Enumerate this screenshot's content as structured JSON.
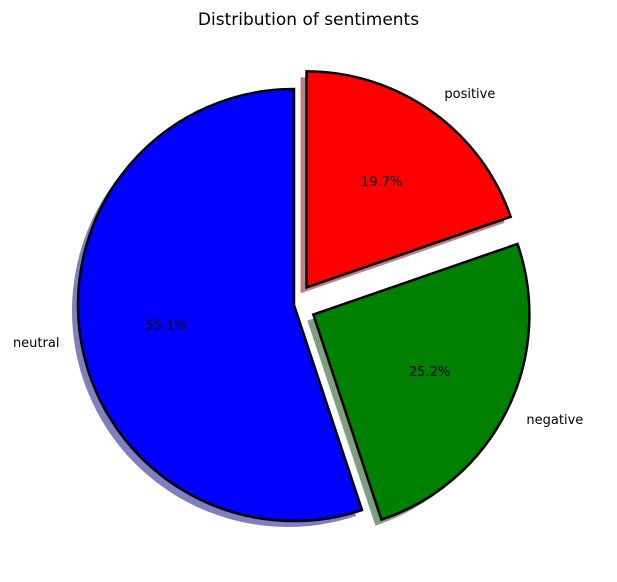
{
  "chart_data": {
    "type": "pie",
    "title": "Distribution of sentiments",
    "slices": [
      {
        "label": "neutral",
        "value": 55.1,
        "pct_label": "55.1%",
        "color": "#0000ff",
        "exploded": false
      },
      {
        "label": "negative",
        "value": 25.2,
        "pct_label": "25.2%",
        "color": "#008000",
        "exploded": true
      },
      {
        "label": "positive",
        "value": 19.7,
        "pct_label": "19.7%",
        "color": "#ff0000",
        "exploded": true
      }
    ],
    "start_angle_deg": 90,
    "direction": "counterclockwise",
    "shadow": true,
    "edgecolor": "#000000"
  }
}
